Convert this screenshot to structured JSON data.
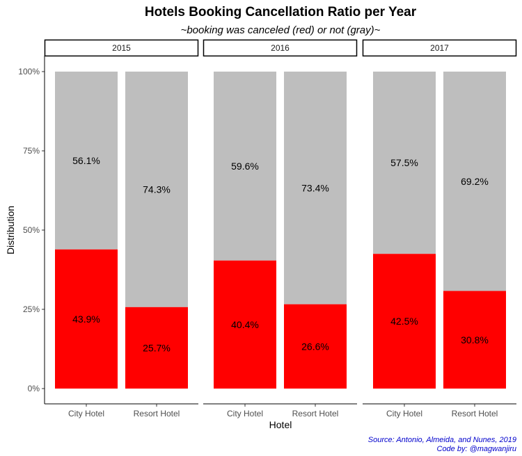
{
  "chart_data": {
    "type": "bar",
    "stacked": true,
    "title": "Hotels Booking Cancellation Ratio per Year",
    "subtitle": "~booking was canceled (red) or not (gray)~",
    "xlabel": "Hotel",
    "ylabel": "Distribution",
    "ylim": [
      0,
      1
    ],
    "yticks": [
      "0%",
      "25%",
      "50%",
      "75%",
      "100%"
    ],
    "ytick_values": [
      0,
      0.25,
      0.5,
      0.75,
      1.0
    ],
    "categories": [
      "City Hotel",
      "Resort Hotel"
    ],
    "caption": [
      "Source: Antonio, Almeida, and Nunes, 2019",
      "Code by: @magwanjiru"
    ],
    "colors": {
      "canceled": "#ff0000",
      "not_canceled": "#bebebe",
      "caption": "#0000cc"
    },
    "facets": [
      {
        "label": "2015",
        "bars": [
          {
            "category": "City Hotel",
            "canceled": 0.439,
            "not_canceled": 0.561,
            "canceled_label": "43.9%",
            "not_canceled_label": "56.1%"
          },
          {
            "category": "Resort Hotel",
            "canceled": 0.257,
            "not_canceled": 0.743,
            "canceled_label": "25.7%",
            "not_canceled_label": "74.3%"
          }
        ]
      },
      {
        "label": "2016",
        "bars": [
          {
            "category": "City Hotel",
            "canceled": 0.404,
            "not_canceled": 0.596,
            "canceled_label": "40.4%",
            "not_canceled_label": "59.6%"
          },
          {
            "category": "Resort Hotel",
            "canceled": 0.266,
            "not_canceled": 0.734,
            "canceled_label": "26.6%",
            "not_canceled_label": "73.4%"
          }
        ]
      },
      {
        "label": "2017",
        "bars": [
          {
            "category": "City Hotel",
            "canceled": 0.425,
            "not_canceled": 0.575,
            "canceled_label": "42.5%",
            "not_canceled_label": "57.5%"
          },
          {
            "category": "Resort Hotel",
            "canceled": 0.308,
            "not_canceled": 0.692,
            "canceled_label": "30.8%",
            "not_canceled_label": "69.2%"
          }
        ]
      }
    ]
  }
}
